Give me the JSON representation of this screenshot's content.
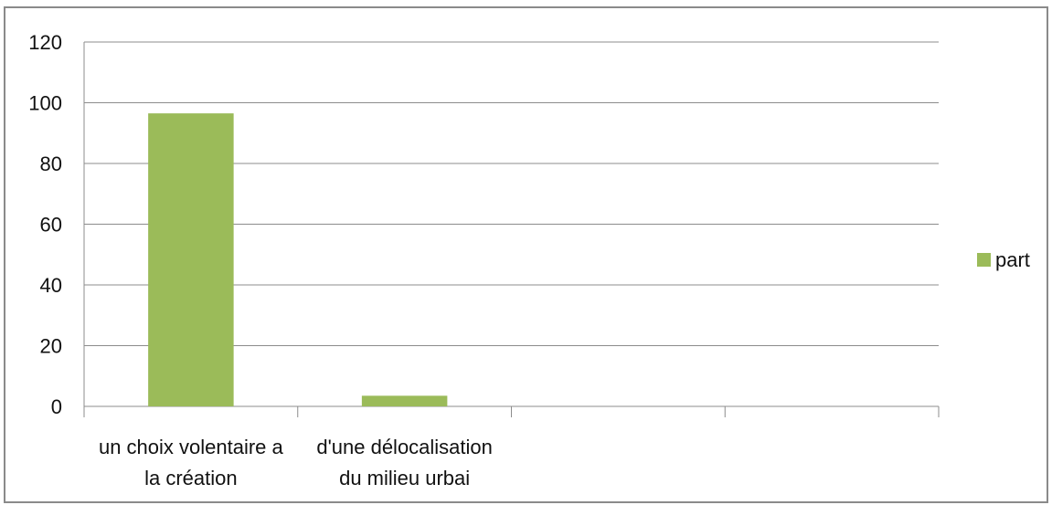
{
  "chart_data": {
    "type": "bar",
    "categories": [
      [
        "un choix volentaire a",
        "la création"
      ],
      [
        "d'une délocalisation",
        "du milieu urbai"
      ],
      [
        "",
        ""
      ],
      [
        "",
        ""
      ]
    ],
    "series": [
      {
        "name": "part",
        "values": [
          96.5,
          3.5,
          null,
          null
        ],
        "color": "#9bbb59"
      }
    ],
    "ylim": [
      0,
      120
    ],
    "yticks": [
      0,
      20,
      40,
      60,
      80,
      100,
      120
    ],
    "grid": true,
    "legend_position": "right",
    "title": "",
    "xlabel": "",
    "ylabel": ""
  }
}
